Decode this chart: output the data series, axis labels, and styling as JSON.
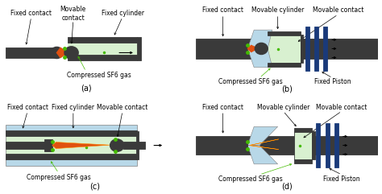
{
  "background": "#ffffff",
  "dark_gray": "#3a3a3a",
  "light_green": "#d8f0d0",
  "light_blue": "#b8d8e8",
  "blue_dark": "#1a3a7a",
  "orange": "#e05010",
  "green_dot": "#44bb00",
  "subplot_labels": [
    "(a)",
    "(b)",
    "(c)",
    "(d)"
  ],
  "fontsize_label": 5.5,
  "fontsize_sub": 7
}
